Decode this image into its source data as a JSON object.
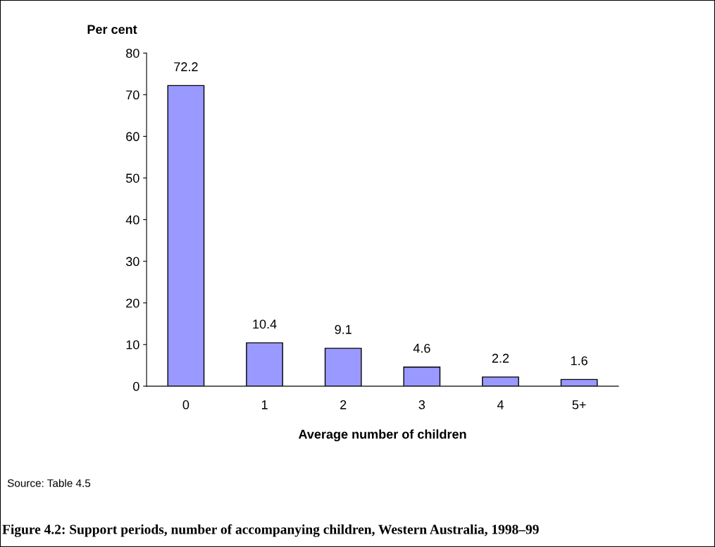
{
  "chart_data": {
    "type": "bar",
    "title": "Figure 4.2: Support periods, number of accompanying children, Western Australia, 1998–99",
    "xlabel": "Average number of children",
    "ylabel": "Per cent",
    "categories": [
      "0",
      "1",
      "2",
      "3",
      "4",
      "5+"
    ],
    "values": [
      72.2,
      10.4,
      9.1,
      4.6,
      2.2,
      1.6
    ],
    "color": "#9999ff",
    "ylim": [
      0,
      80
    ],
    "yticks": [
      0,
      10,
      20,
      30,
      40,
      50,
      60,
      70,
      80
    ],
    "data_labels": true,
    "grid": false,
    "annotations": [
      "Source: Table 4.5"
    ]
  }
}
